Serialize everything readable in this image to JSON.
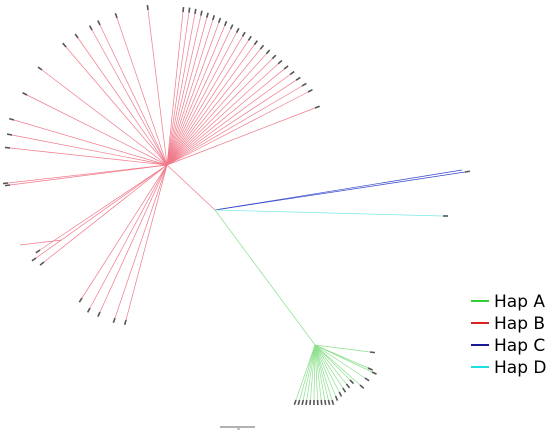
{
  "legend": {
    "items": [
      {
        "label": "Hap A",
        "color": "#33cc33"
      },
      {
        "label": "Hap B",
        "color": "#dd2222"
      },
      {
        "label": "Hap C",
        "color": "#1a1a99"
      },
      {
        "label": "Hap D",
        "color": "#22dddd"
      }
    ]
  }
}
